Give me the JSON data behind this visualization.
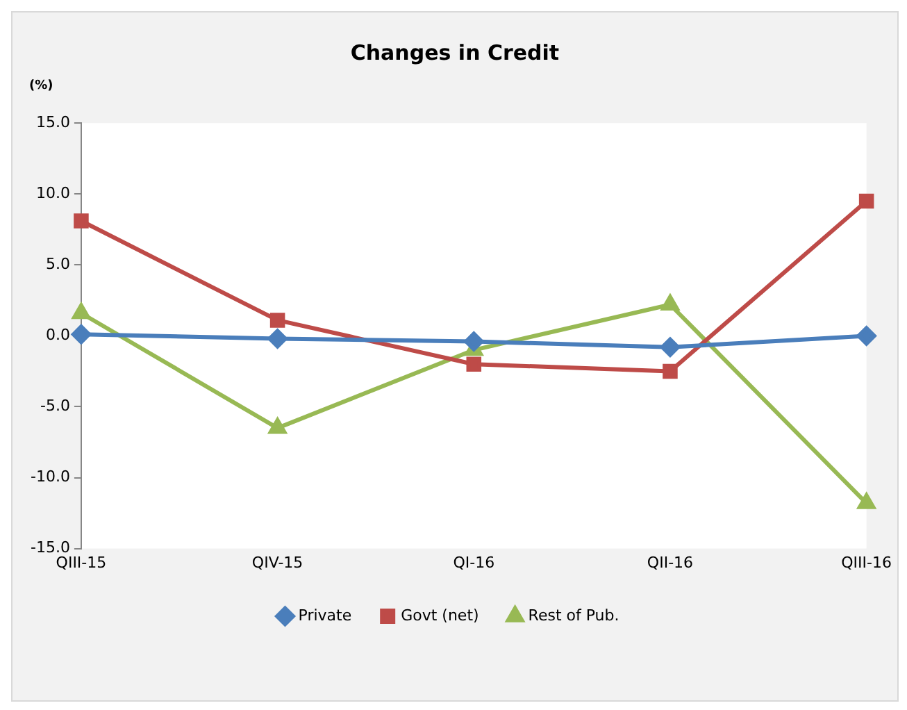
{
  "chart_data": {
    "type": "line",
    "title": "Changes in Credit",
    "ylabel": "(%)",
    "categories": [
      "QIII-15",
      "QIV-15",
      "QI-16",
      "QII-16",
      "QIII-16"
    ],
    "series": [
      {
        "name": "Private",
        "color": "#4a7ebb",
        "marker": "diamond",
        "values": [
          0.1,
          -0.2,
          -0.4,
          -0.8,
          0.0
        ]
      },
      {
        "name": "Govt (net)",
        "color": "#be4b48",
        "marker": "square",
        "values": [
          8.1,
          1.1,
          -2.0,
          -2.5,
          9.5
        ]
      },
      {
        "name": "Rest of Pub.",
        "color": "#98b954",
        "marker": "triangle",
        "values": [
          1.6,
          -6.5,
          -1.0,
          2.2,
          -11.8
        ]
      }
    ],
    "ylim": [
      -15,
      15
    ],
    "yticks": [
      {
        "value": -15,
        "label": "-15.0"
      },
      {
        "value": -10,
        "label": "-10.0"
      },
      {
        "value": -5,
        "label": "-5.0"
      },
      {
        "value": 0,
        "label": "0.0"
      },
      {
        "value": 5,
        "label": "5.0"
      },
      {
        "value": 10,
        "label": "10.0"
      },
      {
        "value": 15,
        "label": "15.0"
      }
    ],
    "grid": false,
    "legend": "bottom",
    "line_style": "solid"
  }
}
